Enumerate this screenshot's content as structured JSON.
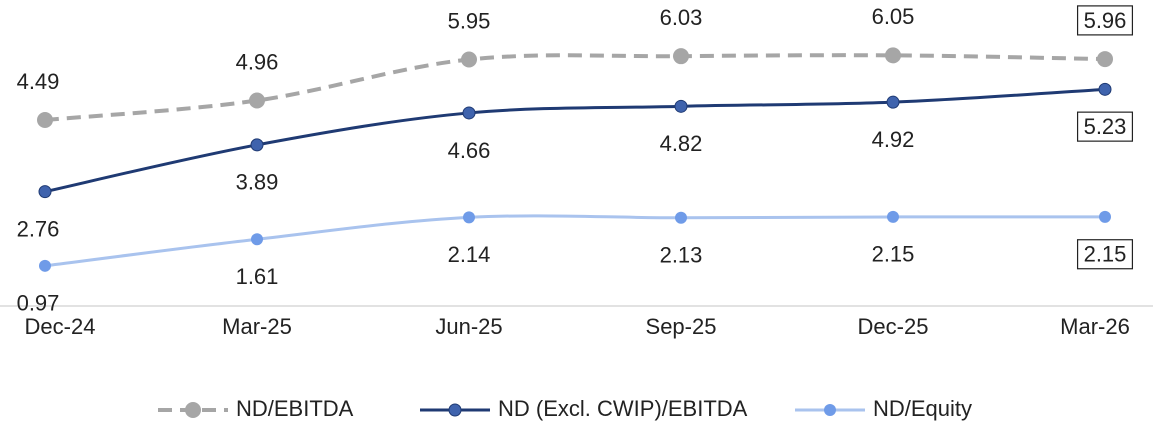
{
  "chart_data": {
    "type": "line",
    "categories": [
      "Dec-24",
      "Mar-25",
      "Jun-25",
      "Sep-25",
      "Dec-25",
      "Mar-26"
    ],
    "series": [
      {
        "name": "ND/EBITDA",
        "color": "#a6a6a6",
        "values": [
          4.49,
          4.96,
          5.95,
          6.03,
          6.05,
          5.96
        ]
      },
      {
        "name": "ND (Excl. CWIP)/EBITDA",
        "color": "#1f3a73",
        "values": [
          2.76,
          3.89,
          4.66,
          4.82,
          4.92,
          5.23
        ]
      },
      {
        "name": "ND/Equity",
        "color": "#a9c3ee",
        "values": [
          0.97,
          1.61,
          2.14,
          2.13,
          2.15,
          2.15
        ]
      }
    ],
    "ylim": [
      0,
      7
    ]
  }
}
